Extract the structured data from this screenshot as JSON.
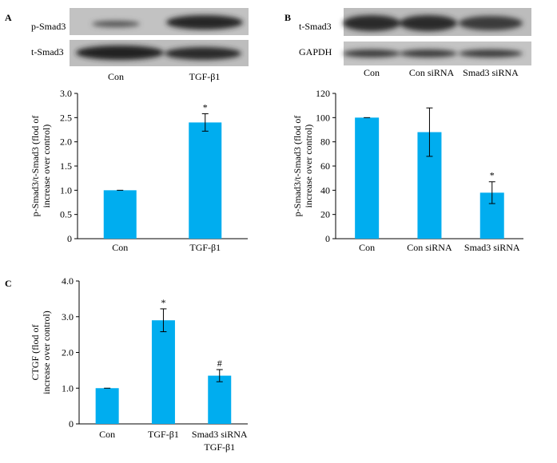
{
  "panels": {
    "a": {
      "letter": "A",
      "blot": {
        "rows": [
          "p-Smad3",
          "t-Smad3"
        ],
        "lanes": [
          "Con",
          "TGF-β1"
        ]
      }
    },
    "b": {
      "letter": "B",
      "blot": {
        "rows": [
          "t-Smad3",
          "GAPDH"
        ],
        "lanes": [
          "Con",
          "Con siRNA",
          "Smad3 siRNA"
        ]
      }
    },
    "c": {
      "letter": "C"
    }
  },
  "bar_color": "#00adef",
  "chart_data": [
    {
      "type": "bar",
      "panel": "A",
      "categories": [
        "Con",
        "TGF-β1"
      ],
      "values": [
        1.0,
        2.4
      ],
      "errors": [
        0.0,
        0.18
      ],
      "annotations": [
        "",
        "*"
      ],
      "ylabel": "p-Smad3/t-Smad3 (flod of increase over control)",
      "ylim": [
        0,
        3.0
      ],
      "yticks": [
        "0",
        "0.5",
        "1.0",
        "1.5",
        "2.0",
        "2.5",
        "3.0"
      ]
    },
    {
      "type": "bar",
      "panel": "B",
      "categories": [
        "Con",
        "Con siRNA",
        "Smad3 siRNA"
      ],
      "values": [
        100,
        88,
        38
      ],
      "errors": [
        0,
        20,
        9
      ],
      "annotations": [
        "",
        "",
        "*"
      ],
      "ylabel": "p-Smad3/t-Smad3 (flod of increase over control)",
      "ylim": [
        0,
        120
      ],
      "yticks": [
        "0",
        "20",
        "40",
        "60",
        "80",
        "100",
        "120"
      ]
    },
    {
      "type": "bar",
      "panel": "C",
      "categories": [
        "Con",
        "TGF-β1",
        "Smad3 siRNA TGF-β1"
      ],
      "category_lines": [
        [
          "Con"
        ],
        [
          "TGF-β1"
        ],
        [
          "Smad3 siRNA",
          "TGF-β1"
        ]
      ],
      "values": [
        1.0,
        2.9,
        1.35
      ],
      "errors": [
        0.0,
        0.32,
        0.17
      ],
      "annotations": [
        "",
        "*",
        "#"
      ],
      "ylabel": "CTGF (flod of increase over control)",
      "ylim": [
        0,
        4.0
      ],
      "yticks": [
        "0",
        "1.0",
        "2.0",
        "3.0",
        "4.0"
      ]
    }
  ]
}
